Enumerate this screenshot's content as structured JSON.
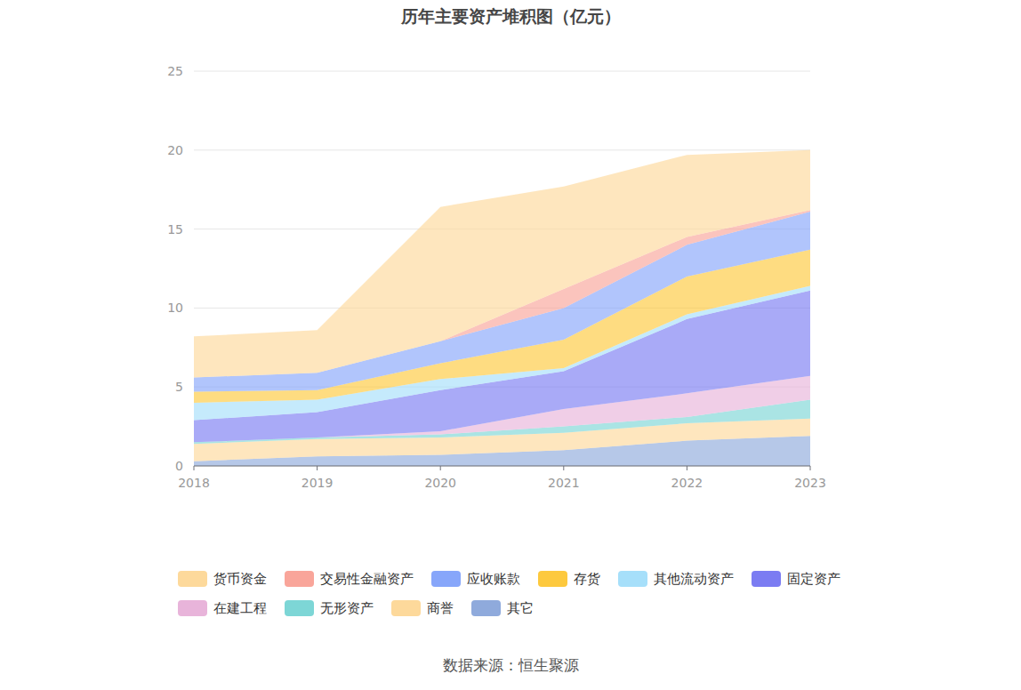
{
  "chart_data": {
    "type": "area",
    "title": "历年主要资产堆积图（亿元）",
    "source": "数据来源：恒生聚源",
    "stacked": true,
    "grid": true,
    "legend": "bottom",
    "categories": [
      "2018",
      "2019",
      "2020",
      "2021",
      "2022",
      "2023"
    ],
    "ylim": [
      0,
      25
    ],
    "yticks": [
      0,
      5,
      10,
      15,
      20,
      25
    ],
    "series": [
      {
        "name": "货币资金",
        "color": "#fdd99b",
        "values": [
          2.6,
          2.7,
          8.5,
          6.5,
          5.2,
          3.8
        ]
      },
      {
        "name": "交易性金融资产",
        "color": "#f9a59a",
        "values": [
          0,
          0,
          0,
          1.2,
          0.5,
          0.1
        ]
      },
      {
        "name": "应收账款",
        "color": "#87a6fa",
        "values": [
          0.9,
          1.1,
          1.4,
          2.0,
          2.0,
          2.4
        ]
      },
      {
        "name": "存货",
        "color": "#fdc93e",
        "values": [
          0.7,
          0.6,
          1.0,
          1.8,
          2.4,
          2.3
        ]
      },
      {
        "name": "其他流动资产",
        "color": "#a6dffa",
        "values": [
          1.1,
          0.8,
          0.7,
          0.2,
          0.3,
          0.3
        ]
      },
      {
        "name": "固定资产",
        "color": "#7b7cf2",
        "values": [
          1.4,
          1.6,
          2.6,
          2.4,
          4.7,
          5.4
        ]
      },
      {
        "name": "在建工程",
        "color": "#e8b4da",
        "values": [
          0,
          0,
          0.2,
          1.1,
          1.5,
          1.5
        ]
      },
      {
        "name": "无形资产",
        "color": "#7dd6d6",
        "values": [
          0.1,
          0.1,
          0.2,
          0.4,
          0.4,
          1.2
        ]
      },
      {
        "name": "商誉",
        "color": "#fdd99b",
        "values": [
          1.1,
          1.1,
          1.1,
          1.1,
          1.1,
          1.1
        ]
      },
      {
        "name": "其它",
        "color": "#8faadc",
        "values": [
          0.3,
          0.6,
          0.7,
          1.0,
          1.6,
          1.9
        ]
      }
    ]
  }
}
